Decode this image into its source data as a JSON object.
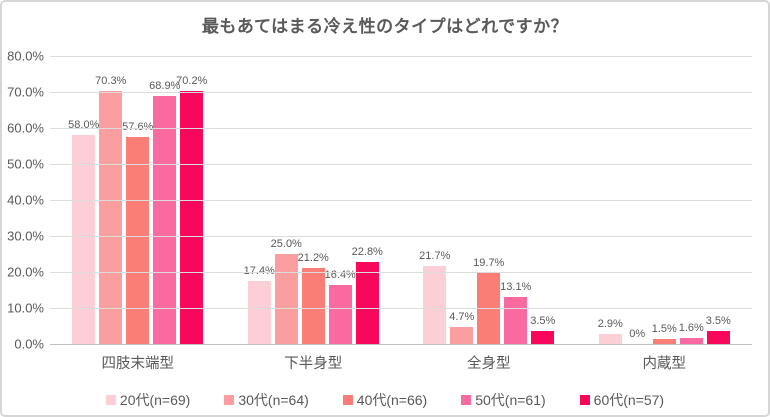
{
  "title": "最もあてはまる冷え性のタイプはどれですか？",
  "chart_data": {
    "type": "bar",
    "title": "最もあてはまる冷え性のタイプはどれですか？",
    "categories": [
      "四肢末端型",
      "下半身型",
      "全身型",
      "内蔵型"
    ],
    "series": [
      {
        "name": "20代(n=69)",
        "color": "#fcced5",
        "values": [
          58.0,
          17.4,
          21.7,
          2.9
        ],
        "labels": [
          "58.0%",
          "17.4%",
          "21.7%",
          "2.9%"
        ]
      },
      {
        "name": "30代(n=64)",
        "color": "#fa9ea0",
        "values": [
          70.3,
          25.0,
          4.7,
          0
        ],
        "labels": [
          "70.3%",
          "25.0%",
          "4.7%",
          "0%"
        ]
      },
      {
        "name": "40代(n=66)",
        "color": "#fa7e76",
        "values": [
          57.6,
          21.2,
          19.7,
          1.5
        ],
        "labels": [
          "57.6%",
          "21.2%",
          "19.7%",
          "1.5%"
        ]
      },
      {
        "name": "50代(n=61)",
        "color": "#f96aa0",
        "values": [
          68.9,
          16.4,
          13.1,
          1.6
        ],
        "labels": [
          "68.9%",
          "16.4%",
          "13.1%",
          "1.6%"
        ]
      },
      {
        "name": "60代(n=57)",
        "color": "#f8075d",
        "values": [
          70.2,
          22.8,
          3.5,
          3.5
        ],
        "labels": [
          "70.2%",
          "22.8%",
          "3.5%",
          "3.5%"
        ]
      }
    ],
    "y_axis": {
      "min": 0,
      "max": 80,
      "step": 10,
      "tick_labels": [
        "0.0%",
        "10.0%",
        "20.0%",
        "30.0%",
        "40.0%",
        "50.0%",
        "60.0%",
        "70.0%",
        "80.0%"
      ]
    },
    "legend_position": "bottom",
    "grid": true
  },
  "colors": {
    "text": "#595959",
    "gridline": "#dcdcdc",
    "axis_line": "#bdbdbd",
    "background": "#ffffff",
    "border": "#d6d6d6"
  }
}
